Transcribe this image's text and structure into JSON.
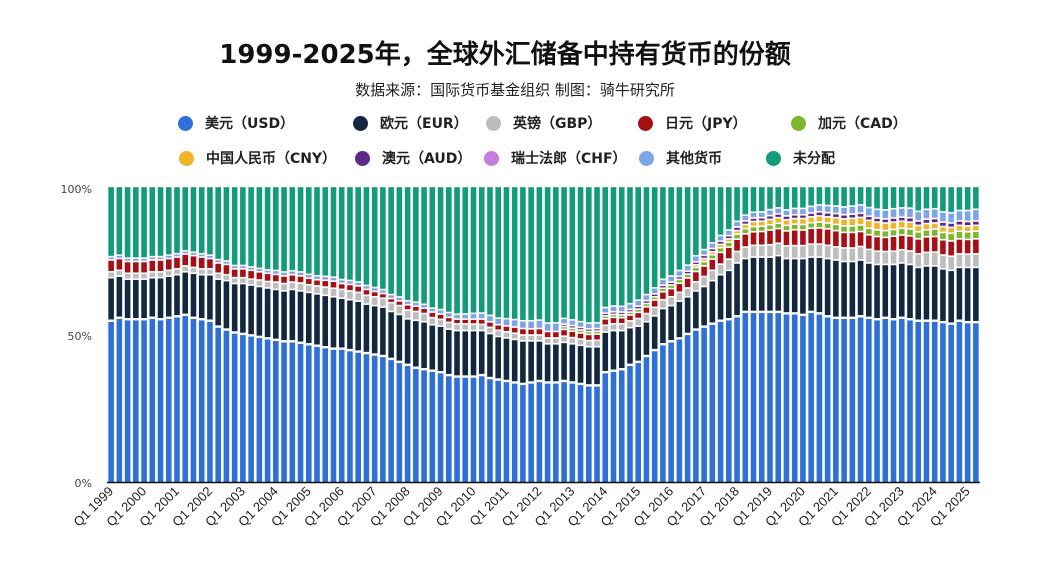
{
  "chart_data": {
    "type": "bar",
    "stacked": true,
    "title": "1999-2025年，全球外汇储备中持有货币的份额",
    "subtitle": "数据来源：国际货币基金组织    制图：骑牛研究所",
    "xlabel": "",
    "ylabel": "",
    "ylim": [
      0,
      100
    ],
    "y_ticks": [
      "0%",
      "50%",
      "100%"
    ],
    "first_quarter": "Q1 1999",
    "last_quarter": "Q2 2025",
    "n_quarters": 106,
    "x_ticks": [
      "Q1 1999",
      "Q1 2000",
      "Q1 2001",
      "Q1 2002",
      "Q1 2003",
      "Q1 2004",
      "Q1 2005",
      "Q1 2006",
      "Q1 2007",
      "Q1 2008",
      "Q1 2009",
      "Q1 2010",
      "Q1 2011",
      "Q1 2012",
      "Q1 2013",
      "Q1 2014",
      "Q1 2015",
      "Q1 2016",
      "Q1 2017",
      "Q1 2018",
      "Q1 2019",
      "Q1 2020",
      "Q1 2021",
      "Q1 2022",
      "Q1 2023",
      "Q1 2024",
      "Q1 2025"
    ],
    "legend_position": "top",
    "series": [
      {
        "name": "美元（USD）",
        "color": "#2f70d8",
        "start": "Q1 1999",
        "values": [
          55,
          56,
          55.5,
          55.5,
          55.5,
          56,
          55.5,
          56,
          56.5,
          57,
          56,
          55.5,
          55,
          53,
          52,
          51,
          50.5,
          50,
          49.5,
          49,
          48.5,
          48,
          48,
          47.5,
          47,
          46.5,
          46,
          45.5,
          45.5,
          45,
          44.5,
          44,
          43.5,
          43,
          42,
          41,
          40,
          39,
          38.5,
          38,
          37.5,
          36.5,
          36,
          36,
          36,
          36.5,
          35.5,
          35,
          34.5,
          34,
          33.5,
          34,
          34.5,
          34,
          34,
          34.5,
          34,
          33.5,
          33,
          33,
          37.5,
          38,
          38.5,
          40,
          41,
          43,
          45,
          47,
          48,
          49,
          50.5,
          52,
          53,
          54,
          55,
          55.5,
          56.5,
          58,
          58,
          58,
          58,
          58,
          57.5,
          57.5,
          57,
          58,
          57.5,
          56.5,
          56,
          56,
          56,
          56.5,
          56,
          55.5,
          56,
          55.5,
          56,
          55.5,
          55,
          55,
          55,
          54.5,
          54,
          55,
          54.5,
          54.5
        ]
      },
      {
        "name": "欧元（EUR）",
        "color": "#13273f",
        "start": "Q1 1999",
        "values": [
          14.5,
          14,
          13.5,
          13.5,
          13.5,
          13.5,
          14,
          14,
          14,
          14.5,
          15,
          15,
          15.5,
          16,
          16.5,
          16.5,
          17,
          17,
          17,
          17,
          17,
          17,
          17.5,
          17.5,
          17.5,
          17.5,
          17.5,
          17.5,
          17,
          17,
          17,
          16.5,
          16.5,
          16.5,
          16,
          16,
          15.5,
          16,
          16,
          15.5,
          15.5,
          15.5,
          15.5,
          15.5,
          15.5,
          15,
          15,
          14.5,
          14.5,
          14.5,
          14.5,
          14,
          13.5,
          13,
          13,
          13,
          13,
          13,
          13,
          13,
          13.5,
          13.5,
          13,
          12.5,
          12,
          11.5,
          11.5,
          12,
          12,
          12.5,
          12.5,
          13,
          13.5,
          14.5,
          15.5,
          16.5,
          18,
          18,
          18.5,
          18.5,
          18.5,
          19,
          18.5,
          18.5,
          19,
          18.5,
          19,
          19.5,
          19.5,
          19,
          19,
          19,
          18.5,
          18.5,
          18,
          18.5,
          18.5,
          18.5,
          18,
          18.5,
          18.5,
          18,
          18,
          18,
          18.5,
          18.5
        ]
      },
      {
        "name": "英镑（GBP）",
        "color": "#bdbdbd",
        "start": "Q1 1999",
        "values": [
          2,
          2,
          2,
          2,
          2,
          2,
          2,
          2,
          2,
          2,
          2,
          2,
          2,
          2,
          2,
          2,
          2,
          2,
          2.2,
          2.2,
          2.5,
          2.5,
          2.5,
          2.7,
          2.6,
          2.7,
          2.8,
          2.9,
          3,
          3,
          3,
          3,
          3,
          3,
          3,
          3,
          3,
          3,
          2.8,
          2.4,
          2.3,
          2.3,
          2.3,
          2.3,
          2.2,
          2.1,
          2.1,
          2.1,
          2.1,
          2.1,
          2,
          2,
          2,
          2,
          2,
          2.1,
          2.1,
          2.1,
          2.1,
          2.2,
          2.3,
          2.3,
          2.3,
          2.3,
          2.6,
          2.8,
          2.9,
          3,
          3,
          3,
          3,
          3.1,
          3.4,
          3.5,
          3.6,
          3.8,
          3.9,
          3.9,
          4,
          4,
          4.2,
          4.2,
          4.3,
          4.4,
          4.4,
          4.4,
          4.4,
          4.5,
          4.5,
          4.6,
          4.6,
          4.6,
          4.6,
          4.5,
          4.4,
          4.5,
          4.5,
          4.6,
          4.6,
          4.6,
          4.7,
          4.7,
          4.8,
          4.6,
          4.5,
          4.6
        ]
      },
      {
        "name": "日元（JPY）",
        "color": "#a50f15",
        "start": "Q1 1999",
        "values": [
          4,
          4,
          4,
          4,
          4,
          4,
          4,
          4,
          4,
          4,
          4,
          4,
          3.5,
          3.5,
          3.5,
          3,
          3,
          3,
          2.8,
          2.8,
          2.6,
          2.6,
          2.5,
          2.4,
          2.2,
          2.1,
          2.3,
          2.4,
          2,
          2.2,
          2.2,
          2,
          1.8,
          1.6,
          1.4,
          1.6,
          1.8,
          1.8,
          1.8,
          1.9,
          1.8,
          1.7,
          1.6,
          1.6,
          1.7,
          1.8,
          1.9,
          1.9,
          2,
          2.1,
          2.2,
          2.1,
          2.2,
          2.2,
          2.2,
          2.3,
          2.2,
          2.1,
          2.1,
          2.1,
          2.2,
          2.2,
          2.1,
          2,
          2.1,
          2.3,
          2.5,
          2.7,
          2.8,
          3.1,
          3.4,
          3.5,
          3.6,
          3.8,
          4,
          4.1,
          4.2,
          4.5,
          4.6,
          4.7,
          5,
          5,
          5.1,
          5.4,
          5.3,
          5.4,
          5.5,
          5.6,
          5.5,
          5.3,
          5.3,
          5.1,
          5,
          5,
          4.8,
          5.1,
          5,
          5.1,
          5.1,
          5.3,
          5.3,
          5.2,
          5.2,
          5.1,
          5,
          5.1
        ]
      },
      {
        "name": "加元（CAD）",
        "color": "#7cb82f",
        "start": "Q4 2012",
        "values": [
          1,
          1,
          1,
          1,
          1,
          1,
          1,
          1,
          1,
          1.1,
          1.1,
          1.1,
          1.2,
          1.2,
          1.3,
          1.3,
          1.4,
          1.5,
          1.5,
          1.6,
          1.7,
          1.7,
          1.8,
          1.8,
          1.8,
          1.8,
          1.8,
          1.9,
          1.9,
          1.9,
          1.9,
          2,
          2,
          2.1,
          2.2,
          2.2,
          2.2,
          2.2,
          2.3,
          2.3,
          2.3,
          2.3,
          2.4,
          2.4,
          2.4,
          2.5,
          2.5,
          2.6,
          2.6,
          2.6,
          2.6
        ]
      },
      {
        "name": "中国人民币（CNY）",
        "color": "#f0b429",
        "start": "Q4 2016",
        "values": [
          0.9,
          1,
          1,
          1.1,
          1.1,
          1.2,
          1.4,
          1.7,
          1.7,
          1.8,
          1.9,
          1.9,
          1.9,
          2,
          2,
          2.1,
          2.1,
          2.3,
          2.4,
          2.6,
          2.6,
          2.7,
          2.6,
          2.6,
          2.5,
          2.4,
          2.3,
          2.2,
          2.1,
          2.1,
          2,
          2,
          2,
          2,
          2
        ]
      },
      {
        "name": "澳元（AUD）",
        "color": "#5b2a86",
        "start": "Q4 2012",
        "values": [
          0.8,
          0.9,
          0.9,
          0.9,
          0.9,
          0.9,
          0.9,
          0.9,
          0.9,
          1,
          1,
          1,
          1,
          1,
          1,
          1,
          1,
          1.1,
          1.1,
          1.1,
          1.1,
          1.2,
          1.2,
          1.2,
          1.2,
          1.3,
          1.3,
          1.3,
          1.3,
          1.3,
          1.3,
          1.4,
          1.4,
          1.4,
          1.4,
          1.4,
          1.4,
          1.4,
          1.4,
          1.4,
          1.4,
          1.4,
          1.5,
          1.5,
          1.5,
          1.5,
          1.5,
          1.5,
          1.5,
          1.5,
          1.5
        ]
      },
      {
        "name": "瑞士法郎（CHF）",
        "color": "#c77ce0",
        "start": "Q1 1999",
        "values": [
          0.15,
          0.15,
          0.15,
          0.15,
          0.15,
          0.15,
          0.15,
          0.15,
          0.15,
          0.15,
          0.15,
          0.15,
          0.15,
          0.15,
          0.15,
          0.15,
          0.15,
          0.15,
          0.15,
          0.15,
          0.15,
          0.15,
          0.15,
          0.15,
          0.15,
          0.15,
          0.15,
          0.15,
          0.15,
          0.15,
          0.15,
          0.15,
          0.15,
          0.15,
          0.15,
          0.15,
          0.15,
          0.15,
          0.15,
          0.15,
          0.15,
          0.15,
          0.15,
          0.15,
          0.15,
          0.15,
          0.15,
          0.15,
          0.15,
          0.15,
          0.15,
          0.15,
          0.15,
          0.15,
          0.15,
          0.15,
          0.15,
          0.15,
          0.15,
          0.15,
          0.15,
          0.15,
          0.15,
          0.15,
          0.15,
          0.15,
          0.15,
          0.15,
          0.15,
          0.15,
          0.15,
          0.15,
          0.15,
          0.15,
          0.15,
          0.15,
          0.15,
          0.15,
          0.15,
          0.15,
          0.15,
          0.15,
          0.15,
          0.15,
          0.15,
          0.15,
          0.15,
          0.15,
          0.15,
          0.15,
          0.15,
          0.15,
          0.15,
          0.15,
          0.15,
          0.15,
          0.15,
          0.15,
          0.15,
          0.15,
          0.15,
          0.15,
          0.15,
          0.15,
          0.15,
          0.15
        ]
      },
      {
        "name": "其他货币",
        "color": "#7aa6e8",
        "start": "Q1 1999",
        "values": [
          1,
          1,
          1,
          1,
          1,
          1,
          1,
          1,
          1,
          1,
          1,
          1,
          1,
          1,
          1,
          1,
          1,
          1,
          1,
          1,
          1.2,
          1.2,
          1.2,
          1.2,
          1.2,
          1.2,
          1.2,
          1.2,
          1.2,
          1.2,
          1.2,
          1.2,
          1.2,
          1.2,
          1.2,
          1.2,
          1.2,
          1.2,
          1.2,
          1.2,
          1.4,
          1.5,
          1.5,
          1.6,
          1.8,
          1.9,
          2,
          2.1,
          2.3,
          2.4,
          2.5,
          2.6,
          2.7,
          2.7,
          2.8,
          1.8,
          1.8,
          1.8,
          1.8,
          1.8,
          1.8,
          1.8,
          1.8,
          1.8,
          1.9,
          1.9,
          1.9,
          1.9,
          1.9,
          1.9,
          1.9,
          1.9,
          1.8,
          1.8,
          1.8,
          1.8,
          1.8,
          1.8,
          1.8,
          1.8,
          1.9,
          1.9,
          1.9,
          2,
          2,
          2.1,
          2.2,
          2.3,
          2.4,
          2.5,
          2.6,
          2.7,
          2.8,
          2.8,
          2.9,
          3,
          3,
          3.1,
          3.1,
          3.2,
          3.2,
          3.3,
          3.3,
          3.4,
          3.6,
          3.8
        ]
      },
      {
        "name": "未分配",
        "color": "#149b7a",
        "start": "Q1 1999",
        "remainder_to": 100
      }
    ]
  }
}
